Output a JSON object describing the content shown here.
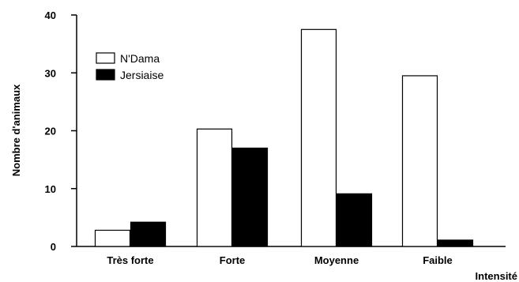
{
  "chart_data": {
    "type": "bar",
    "title": "",
    "xlabel": "Intensité",
    "ylabel": "Nombre d'animaux",
    "categories": [
      "Très forte",
      "Forte",
      "Moyenne",
      "Faible"
    ],
    "series": [
      {
        "name": "N'Dama",
        "values": [
          2.8,
          20.3,
          37.5,
          29.5
        ],
        "color": "#ffffff"
      },
      {
        "name": "Jersiaise",
        "values": [
          4.2,
          17.0,
          9.1,
          1.1
        ],
        "color": "#000000"
      }
    ],
    "ylim": [
      0,
      40
    ],
    "yticks": [
      0,
      10,
      20,
      30,
      40
    ],
    "grid": false,
    "legend_position": "top-left"
  }
}
